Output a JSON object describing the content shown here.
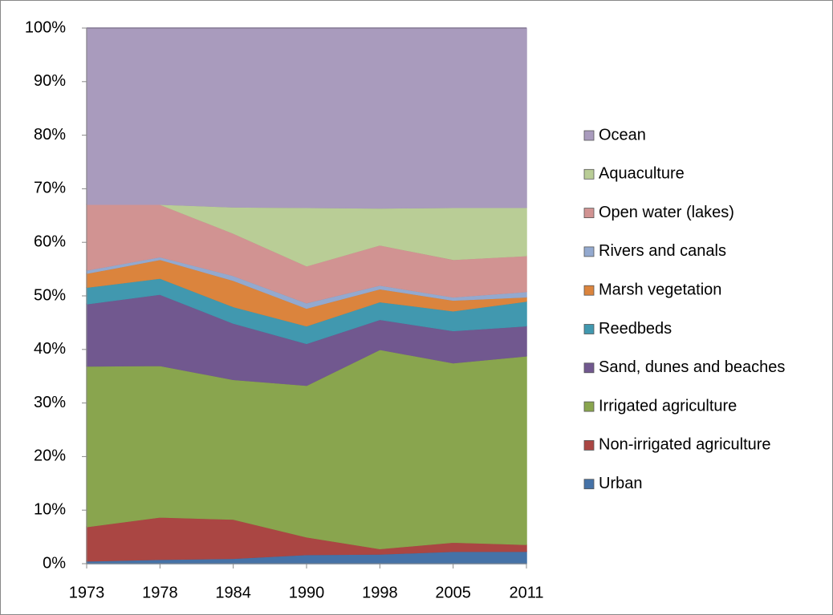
{
  "chart_data": {
    "type": "stacked-area",
    "categories": [
      "1973",
      "1978",
      "1984",
      "1990",
      "1998",
      "2005",
      "2011"
    ],
    "series": [
      {
        "name": "Urban",
        "color": "#4572A7",
        "values": [
          0.5,
          0.8,
          1.0,
          1.7,
          1.8,
          2.3,
          2.3
        ]
      },
      {
        "name": "Non-irrigated agriculture",
        "color": "#AA4643",
        "values": [
          6.4,
          7.9,
          7.3,
          3.3,
          1.0,
          1.7,
          1.3
        ]
      },
      {
        "name": "Irrigated agriculture",
        "color": "#89A54E",
        "values": [
          30.0,
          28.3,
          26.1,
          28.3,
          37.2,
          33.5,
          35.2
        ]
      },
      {
        "name": "Sand, dunes and beaches",
        "color": "#71588F",
        "values": [
          11.6,
          13.3,
          10.5,
          7.8,
          5.6,
          6.0,
          5.6
        ]
      },
      {
        "name": "Reedbeds",
        "color": "#4198AF",
        "values": [
          3.1,
          3.0,
          3.1,
          3.3,
          3.3,
          3.7,
          4.6
        ]
      },
      {
        "name": "Marsh vegetation",
        "color": "#DB843D",
        "values": [
          2.6,
          3.5,
          4.9,
          3.3,
          2.4,
          2.0,
          0.8
        ]
      },
      {
        "name": "Rivers and canals",
        "color": "#93A9CF",
        "values": [
          0.6,
          0.5,
          0.9,
          1.0,
          0.7,
          0.6,
          1.0
        ]
      },
      {
        "name": "Open water (lakes)",
        "color": "#D19392",
        "values": [
          12.3,
          9.8,
          7.9,
          6.9,
          7.5,
          7.0,
          6.7
        ]
      },
      {
        "name": "Aquaculture",
        "color": "#B9CD96",
        "values": [
          0,
          0,
          4.9,
          10.9,
          6.9,
          9.7,
          9.0
        ]
      },
      {
        "name": "Ocean",
        "color": "#A99BBD",
        "values": [
          32.9,
          32.9,
          33.4,
          33.5,
          33.6,
          33.5,
          33.5
        ]
      }
    ],
    "ylim": [
      0,
      100
    ],
    "yticks": [
      {
        "value": 0,
        "label": "0%"
      },
      {
        "value": 10,
        "label": "10%"
      },
      {
        "value": 20,
        "label": "20%"
      },
      {
        "value": 30,
        "label": "30%"
      },
      {
        "value": 40,
        "label": "40%"
      },
      {
        "value": 50,
        "label": "50%"
      },
      {
        "value": 60,
        "label": "60%"
      },
      {
        "value": 70,
        "label": "70%"
      },
      {
        "value": 80,
        "label": "80%"
      },
      {
        "value": 90,
        "label": "90%"
      },
      {
        "value": 100,
        "label": "100%"
      }
    ],
    "legend": "right"
  }
}
